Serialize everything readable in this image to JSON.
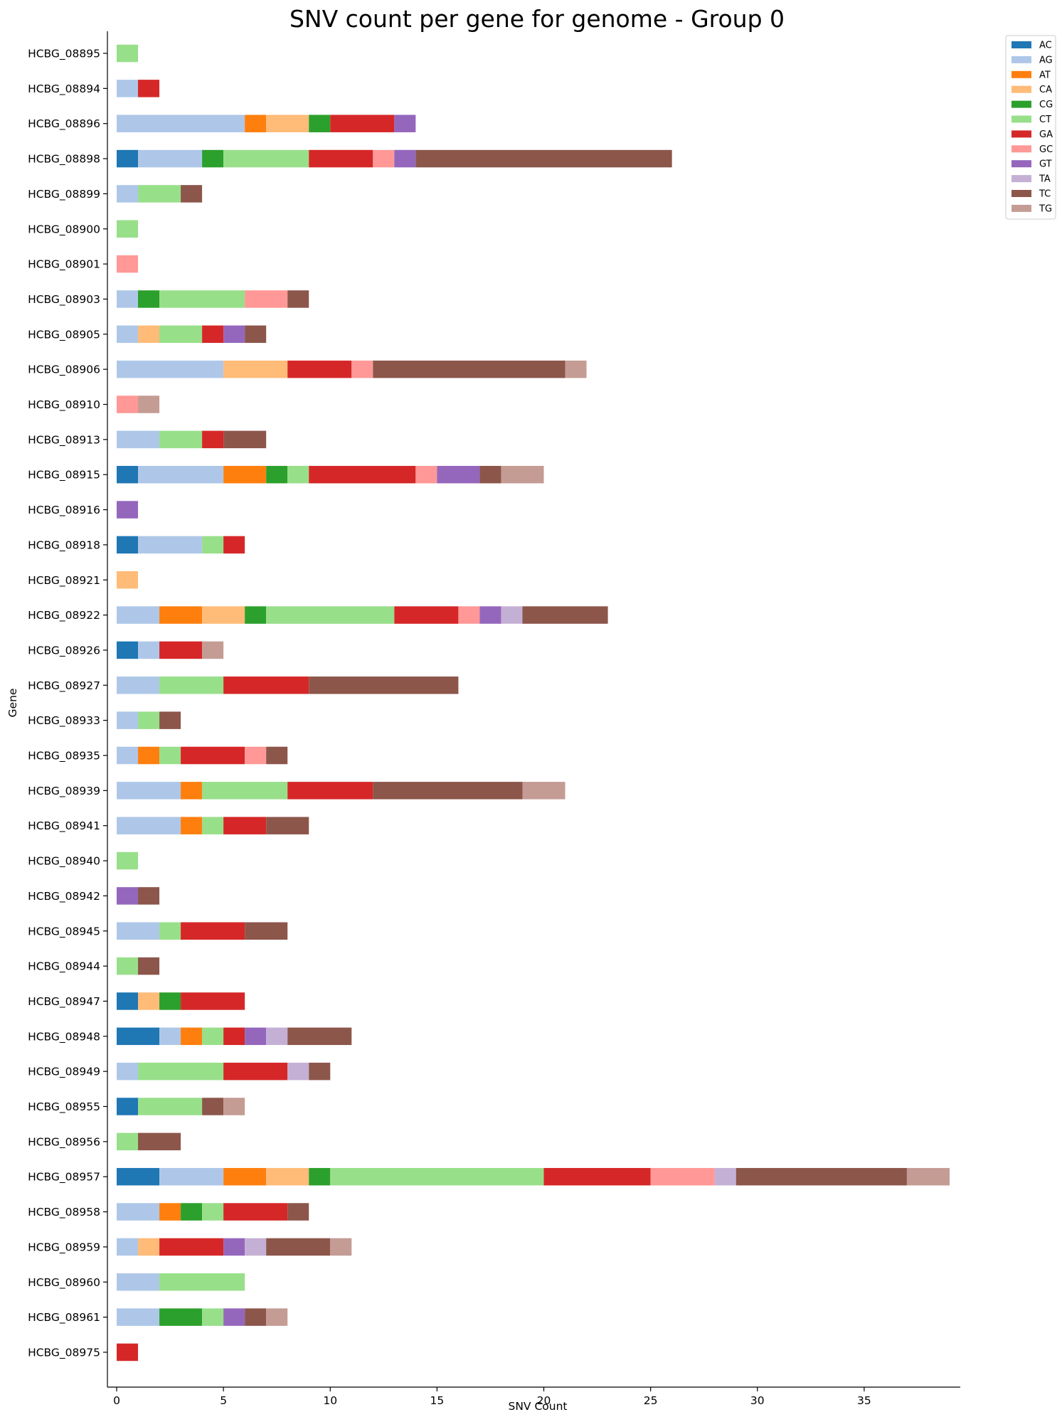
{
  "chart_data": {
    "type": "bar",
    "orientation": "horizontal",
    "stacked": true,
    "title": "SNV count per gene for genome - Group 0",
    "xlabel": "SNV Count",
    "ylabel": "Gene",
    "xlim": [
      0,
      39.5
    ],
    "xticks": [
      0,
      5,
      10,
      15,
      20,
      25,
      30,
      35
    ],
    "grid": false,
    "legend_position": "top-right (outside)",
    "categories": [
      "HCBG_08895",
      "HCBG_08894",
      "HCBG_08896",
      "HCBG_08898",
      "HCBG_08899",
      "HCBG_08900",
      "HCBG_08901",
      "HCBG_08903",
      "HCBG_08905",
      "HCBG_08906",
      "HCBG_08910",
      "HCBG_08913",
      "HCBG_08915",
      "HCBG_08916",
      "HCBG_08918",
      "HCBG_08921",
      "HCBG_08922",
      "HCBG_08926",
      "HCBG_08927",
      "HCBG_08933",
      "HCBG_08935",
      "HCBG_08939",
      "HCBG_08941",
      "HCBG_08940",
      "HCBG_08942",
      "HCBG_08945",
      "HCBG_08944",
      "HCBG_08947",
      "HCBG_08948",
      "HCBG_08949",
      "HCBG_08955",
      "HCBG_08956",
      "HCBG_08957",
      "HCBG_08958",
      "HCBG_08959",
      "HCBG_08960",
      "HCBG_08961",
      "HCBG_08975"
    ],
    "series": [
      {
        "name": "AC",
        "color": "#1f77b4",
        "values": [
          0,
          0,
          0,
          1,
          0,
          0,
          0,
          0,
          0,
          0,
          0,
          0,
          1,
          0,
          1,
          0,
          0,
          1,
          0,
          0,
          0,
          0,
          0,
          0,
          0,
          0,
          0,
          1,
          2,
          0,
          1,
          0,
          2,
          0,
          0,
          0,
          0,
          0
        ]
      },
      {
        "name": "AG",
        "color": "#aec7e8",
        "values": [
          0,
          1,
          6,
          3,
          1,
          0,
          0,
          1,
          1,
          5,
          0,
          2,
          4,
          0,
          3,
          0,
          2,
          1,
          2,
          1,
          1,
          3,
          3,
          0,
          0,
          2,
          0,
          0,
          1,
          1,
          0,
          0,
          3,
          2,
          1,
          2,
          2,
          0
        ]
      },
      {
        "name": "AT",
        "color": "#ff7f0e",
        "values": [
          0,
          0,
          1,
          0,
          0,
          0,
          0,
          0,
          0,
          0,
          0,
          0,
          2,
          0,
          0,
          0,
          2,
          0,
          0,
          0,
          1,
          1,
          1,
          0,
          0,
          0,
          0,
          0,
          1,
          0,
          0,
          0,
          2,
          1,
          0,
          0,
          0,
          0
        ]
      },
      {
        "name": "CA",
        "color": "#ffbb78",
        "values": [
          0,
          0,
          2,
          0,
          0,
          0,
          0,
          0,
          1,
          3,
          0,
          0,
          0,
          0,
          0,
          1,
          2,
          0,
          0,
          0,
          0,
          0,
          0,
          0,
          0,
          0,
          0,
          1,
          0,
          0,
          0,
          0,
          2,
          0,
          1,
          0,
          0,
          0
        ]
      },
      {
        "name": "CG",
        "color": "#2ca02c",
        "values": [
          0,
          0,
          1,
          1,
          0,
          0,
          0,
          1,
          0,
          0,
          0,
          0,
          1,
          0,
          0,
          0,
          1,
          0,
          0,
          0,
          0,
          0,
          0,
          0,
          0,
          0,
          0,
          1,
          0,
          0,
          0,
          0,
          1,
          1,
          0,
          0,
          2,
          0
        ]
      },
      {
        "name": "CT",
        "color": "#98df8a",
        "values": [
          1,
          0,
          0,
          4,
          2,
          1,
          0,
          4,
          2,
          0,
          0,
          2,
          1,
          0,
          1,
          0,
          6,
          0,
          3,
          1,
          1,
          4,
          1,
          1,
          0,
          1,
          1,
          0,
          1,
          4,
          3,
          1,
          10,
          1,
          0,
          4,
          1,
          0
        ]
      },
      {
        "name": "GA",
        "color": "#d62728",
        "values": [
          0,
          1,
          3,
          3,
          0,
          0,
          0,
          0,
          1,
          3,
          0,
          1,
          5,
          0,
          1,
          0,
          3,
          2,
          4,
          0,
          3,
          4,
          2,
          0,
          0,
          3,
          0,
          3,
          1,
          3,
          0,
          0,
          5,
          3,
          3,
          0,
          0,
          1
        ]
      },
      {
        "name": "GC",
        "color": "#ff9896",
        "values": [
          0,
          0,
          0,
          1,
          0,
          0,
          1,
          2,
          0,
          1,
          1,
          0,
          1,
          0,
          0,
          0,
          1,
          0,
          0,
          0,
          1,
          0,
          0,
          0,
          0,
          0,
          0,
          0,
          0,
          0,
          0,
          0,
          3,
          0,
          0,
          0,
          0,
          0
        ]
      },
      {
        "name": "GT",
        "color": "#9467bd",
        "values": [
          0,
          0,
          1,
          1,
          0,
          0,
          0,
          0,
          1,
          0,
          0,
          0,
          2,
          1,
          0,
          0,
          1,
          0,
          0,
          0,
          0,
          0,
          0,
          0,
          1,
          0,
          0,
          0,
          1,
          0,
          0,
          0,
          0,
          0,
          1,
          0,
          1,
          0
        ]
      },
      {
        "name": "TA",
        "color": "#c5b0d5",
        "values": [
          0,
          0,
          0,
          0,
          0,
          0,
          0,
          0,
          0,
          0,
          0,
          0,
          0,
          0,
          0,
          0,
          1,
          0,
          0,
          0,
          0,
          0,
          0,
          0,
          0,
          0,
          0,
          0,
          1,
          1,
          0,
          0,
          1,
          0,
          1,
          0,
          0,
          0
        ]
      },
      {
        "name": "TC",
        "color": "#8c564b",
        "values": [
          0,
          0,
          0,
          12,
          1,
          0,
          0,
          1,
          1,
          9,
          0,
          2,
          1,
          0,
          0,
          0,
          4,
          0,
          7,
          1,
          1,
          7,
          2,
          0,
          1,
          2,
          1,
          0,
          3,
          1,
          1,
          2,
          8,
          1,
          3,
          0,
          1,
          0
        ]
      },
      {
        "name": "TG",
        "color": "#c49c94",
        "values": [
          0,
          0,
          0,
          0,
          0,
          0,
          0,
          0,
          0,
          1,
          1,
          0,
          2,
          0,
          0,
          0,
          0,
          1,
          0,
          0,
          0,
          2,
          0,
          0,
          0,
          0,
          0,
          0,
          0,
          0,
          1,
          0,
          2,
          0,
          1,
          0,
          1,
          0
        ]
      }
    ]
  }
}
